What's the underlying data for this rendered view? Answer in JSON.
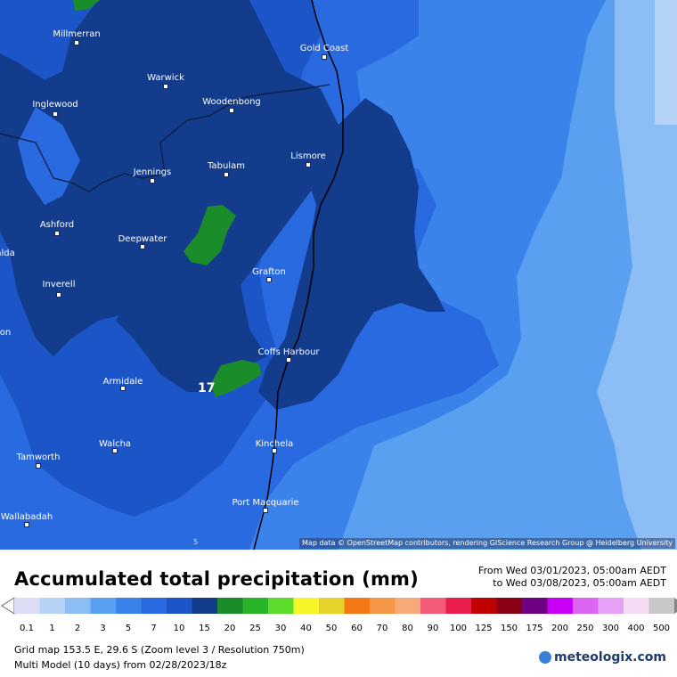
{
  "map": {
    "attribution": "Map data © OpenStreetMap contributors, rendering GIScience Research Group @ Heidelberg University",
    "max_value_label": "17",
    "edge_mark": "5",
    "places": [
      "Millmerran",
      "Gold Coast",
      "Warwick",
      "Inglewood",
      "Woodenbong",
      "Lismore",
      "Tabulam",
      "Jennings",
      "Ashford",
      "Deepwater",
      "alda",
      "Grafton",
      "Inverell",
      "on",
      "Coffs Harbour",
      "Armidale",
      "Walcha",
      "Kinchela",
      "Tamworth",
      "Port Macquarie",
      "Wallabadah"
    ]
  },
  "header": {
    "title": "Accumulated total precipitation (mm)",
    "from": "From Wed 03/01/2023, 05:00am AEDT",
    "to": "to Wed 03/08/2023, 05:00am AEDT"
  },
  "legend": {
    "values": [
      "0.1",
      "1",
      "2",
      "3",
      "5",
      "7",
      "10",
      "15",
      "20",
      "25",
      "30",
      "40",
      "50",
      "60",
      "70",
      "80",
      "90",
      "100",
      "125",
      "150",
      "175",
      "200",
      "250",
      "300",
      "400",
      "500"
    ],
    "colors": [
      "#dcdcf5",
      "#b4d2f5",
      "#8cbef5",
      "#5aa0f0",
      "#3c82eb",
      "#2a6ae0",
      "#1c55c8",
      "#143c8c",
      "#1a8c2a",
      "#28b428",
      "#5adc28",
      "#f5f528",
      "#e6d228",
      "#f57814",
      "#f59646",
      "#f5aa78",
      "#f55a78",
      "#eb1e50",
      "#be0000",
      "#8c0014",
      "#6e0082",
      "#c800f5",
      "#dc64f5",
      "#e6a0f5",
      "#f5dcf5",
      "#c8c8c8"
    ]
  },
  "footer": {
    "grid": "Grid map 153.5 E, 29.6 S (Zoom level 3 / Resolution 750m)",
    "model": "Multi Model (10 days) from  02/28/2023/18z",
    "logo": "meteologix.com"
  }
}
